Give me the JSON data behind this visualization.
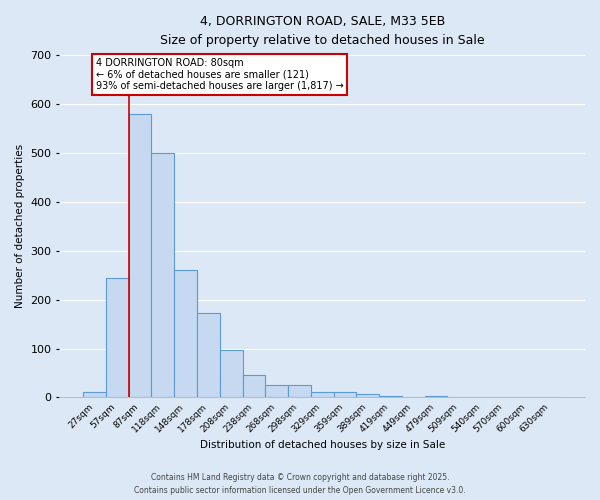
{
  "title_line1": "4, DORRINGTON ROAD, SALE, M33 5EB",
  "title_line2": "Size of property relative to detached houses in Sale",
  "xlabel": "Distribution of detached houses by size in Sale",
  "ylabel": "Number of detached properties",
  "bar_labels": [
    "27sqm",
    "57sqm",
    "87sqm",
    "118sqm",
    "148sqm",
    "178sqm",
    "208sqm",
    "238sqm",
    "268sqm",
    "298sqm",
    "329sqm",
    "359sqm",
    "389sqm",
    "419sqm",
    "449sqm",
    "479sqm",
    "509sqm",
    "540sqm",
    "570sqm",
    "600sqm",
    "630sqm"
  ],
  "bar_values": [
    12,
    245,
    580,
    500,
    260,
    172,
    97,
    47,
    25,
    25,
    12,
    12,
    7,
    3,
    0,
    3,
    0,
    0,
    0,
    0,
    0
  ],
  "bar_color": "#c6d9f0",
  "bar_edge_color": "#5b9bd5",
  "background_color": "#dce8f5",
  "grid_color": "#ffffff",
  "red_line_x": 1.5,
  "annotation_text": "4 DORRINGTON ROAD: 80sqm\n← 6% of detached houses are smaller (121)\n93% of semi-detached houses are larger (1,817) →",
  "annotation_box_color": "#ffffff",
  "annotation_box_edge": "#cc0000",
  "ylim": [
    0,
    700
  ],
  "yticks": [
    0,
    100,
    200,
    300,
    400,
    500,
    600,
    700
  ],
  "footer_line1": "Contains HM Land Registry data © Crown copyright and database right 2025.",
  "footer_line2": "Contains public sector information licensed under the Open Government Licence v3.0."
}
